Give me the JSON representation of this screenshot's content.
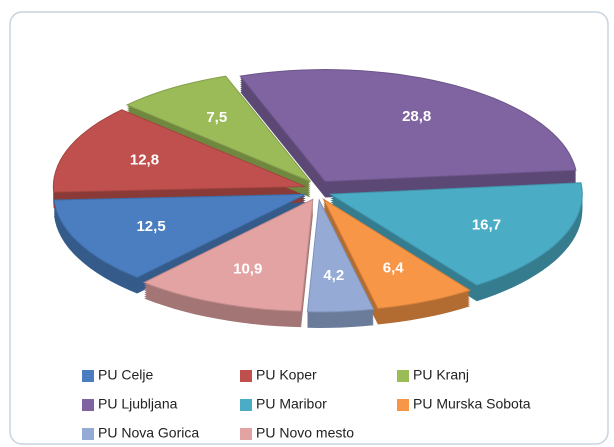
{
  "chart_data": {
    "type": "pie",
    "categories": [
      "PU Celje",
      "PU Koper",
      "PU Kranj",
      "PU Ljubljana",
      "PU Maribor",
      "PU Murska Sobota",
      "PU Nova Gorica",
      "PU Novo mesto"
    ],
    "values": [
      12.5,
      12.8,
      7.5,
      28.8,
      16.7,
      6.4,
      4.2,
      10.9
    ],
    "value_labels": [
      "12,5",
      "12,8",
      "7,5",
      "28,8",
      "16,7",
      "6,4",
      "4,2",
      "10,9"
    ],
    "colors": [
      "#4a7ec0",
      "#c0504d",
      "#9bbb59",
      "#8064a2",
      "#4bacc6",
      "#f79646",
      "#95abd6",
      "#e3a3a3"
    ],
    "legend": "bottom"
  }
}
